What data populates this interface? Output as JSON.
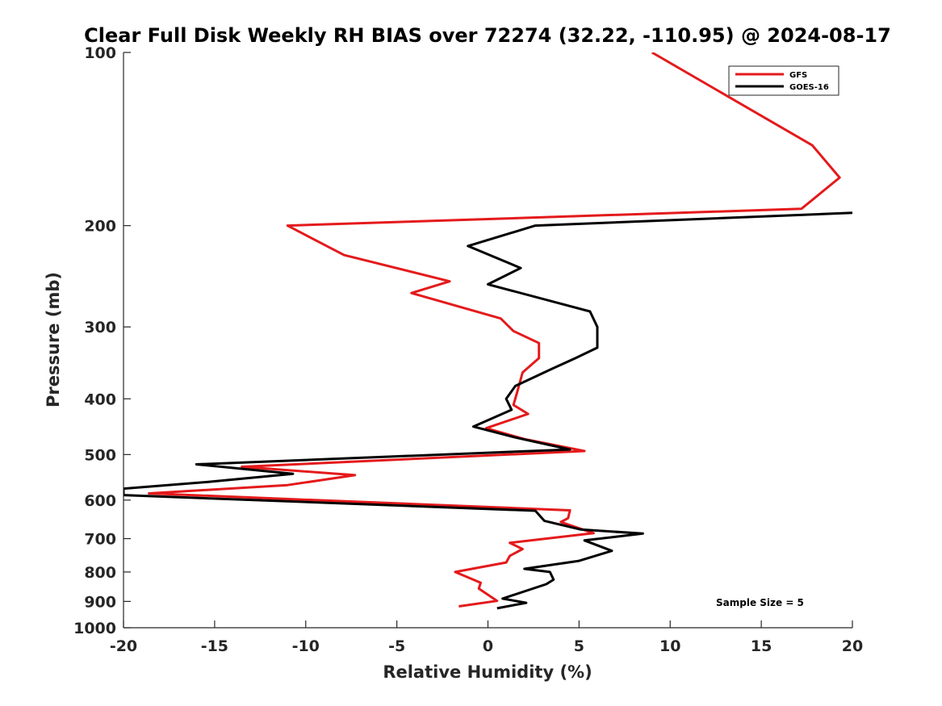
{
  "chart_data": {
    "type": "line",
    "title": "Clear Full Disk Weekly RH BIAS over 72274 (32.22, -110.95) @ 2024-08-17",
    "xlabel": "Relative Humidity (%)",
    "ylabel": "Pressure (mb)",
    "xlim": [
      -20,
      20
    ],
    "ylim": [
      100,
      1000
    ],
    "y_scale": "log",
    "y_reversed": true,
    "x_ticks": [
      -20,
      -15,
      -10,
      -5,
      0,
      5,
      10,
      15,
      20
    ],
    "x_tick_labels": [
      "-20",
      "-15",
      "-10",
      "-5",
      "0",
      "5",
      "10",
      "15",
      "20"
    ],
    "y_ticks": [
      100,
      200,
      300,
      400,
      500,
      600,
      700,
      800,
      900,
      1000
    ],
    "y_tick_labels": [
      "100",
      "200",
      "300",
      "400",
      "500",
      "600",
      "700",
      "800",
      "900",
      "1000"
    ],
    "grid": false,
    "legend": "top-right",
    "annotation": "Sample Size = 5",
    "series": [
      {
        "name": "GFS",
        "color": "#e41a1c",
        "points": [
          {
            "x": 9.0,
            "y": 100
          },
          {
            "x": 17.8,
            "y": 145
          },
          {
            "x": 19.3,
            "y": 165
          },
          {
            "x": 17.2,
            "y": 187
          },
          {
            "x": -11.0,
            "y": 200
          },
          {
            "x": -7.9,
            "y": 225
          },
          {
            "x": -2.1,
            "y": 250
          },
          {
            "x": -4.2,
            "y": 262
          },
          {
            "x": 0.7,
            "y": 290
          },
          {
            "x": 1.4,
            "y": 305
          },
          {
            "x": 2.8,
            "y": 320
          },
          {
            "x": 2.8,
            "y": 340
          },
          {
            "x": 1.9,
            "y": 360
          },
          {
            "x": 1.6,
            "y": 390
          },
          {
            "x": 1.4,
            "y": 410
          },
          {
            "x": 2.2,
            "y": 425
          },
          {
            "x": -0.1,
            "y": 450
          },
          {
            "x": 2.0,
            "y": 470
          },
          {
            "x": 5.3,
            "y": 493
          },
          {
            "x": -13.5,
            "y": 525
          },
          {
            "x": -7.3,
            "y": 543
          },
          {
            "x": -11.0,
            "y": 565
          },
          {
            "x": -18.6,
            "y": 584
          },
          {
            "x": 4.5,
            "y": 625
          },
          {
            "x": 4.4,
            "y": 645
          },
          {
            "x": 4.0,
            "y": 655
          },
          {
            "x": 5.8,
            "y": 685
          },
          {
            "x": 1.2,
            "y": 712
          },
          {
            "x": 1.9,
            "y": 730
          },
          {
            "x": 1.2,
            "y": 750
          },
          {
            "x": 1.0,
            "y": 770
          },
          {
            "x": -1.8,
            "y": 800
          },
          {
            "x": -0.4,
            "y": 835
          },
          {
            "x": -0.5,
            "y": 855
          },
          {
            "x": 0.5,
            "y": 898
          },
          {
            "x": -1.6,
            "y": 918
          }
        ]
      },
      {
        "name": "GOES-16",
        "color": "#000000",
        "points": [
          {
            "x": 20.0,
            "y": 190
          },
          {
            "x": 2.6,
            "y": 200
          },
          {
            "x": -1.1,
            "y": 217
          },
          {
            "x": 1.8,
            "y": 237
          },
          {
            "x": 0.0,
            "y": 253
          },
          {
            "x": 5.6,
            "y": 282
          },
          {
            "x": 6.0,
            "y": 300
          },
          {
            "x": 6.0,
            "y": 326
          },
          {
            "x": 4.8,
            "y": 340
          },
          {
            "x": 3.5,
            "y": 355
          },
          {
            "x": 1.5,
            "y": 380
          },
          {
            "x": 1.0,
            "y": 400
          },
          {
            "x": 1.3,
            "y": 418
          },
          {
            "x": -0.8,
            "y": 447
          },
          {
            "x": 1.5,
            "y": 467
          },
          {
            "x": 4.5,
            "y": 490
          },
          {
            "x": -16.0,
            "y": 520
          },
          {
            "x": -10.7,
            "y": 540
          },
          {
            "x": -15.4,
            "y": 558
          },
          {
            "x": -20.0,
            "y": 573
          },
          {
            "x": -20.0,
            "y": 588
          },
          {
            "x": 2.6,
            "y": 626
          },
          {
            "x": 3.1,
            "y": 652
          },
          {
            "x": 5.1,
            "y": 675
          },
          {
            "x": 8.5,
            "y": 686
          },
          {
            "x": 5.3,
            "y": 705
          },
          {
            "x": 6.8,
            "y": 735
          },
          {
            "x": 5.0,
            "y": 765
          },
          {
            "x": 2.0,
            "y": 790
          },
          {
            "x": 3.4,
            "y": 800
          },
          {
            "x": 3.6,
            "y": 825
          },
          {
            "x": 3.2,
            "y": 840
          },
          {
            "x": 0.8,
            "y": 890
          },
          {
            "x": 2.1,
            "y": 905
          },
          {
            "x": 0.5,
            "y": 925
          }
        ]
      }
    ]
  }
}
